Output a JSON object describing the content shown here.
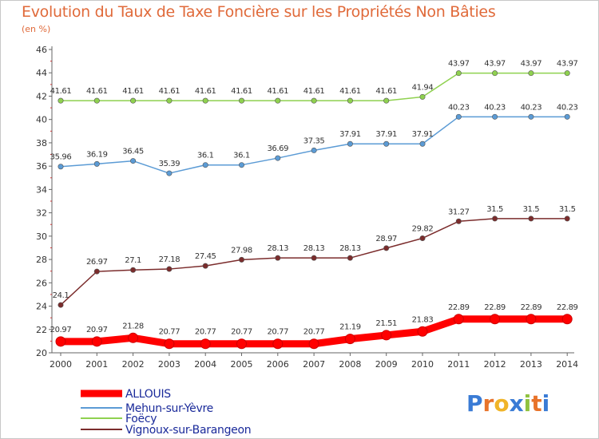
{
  "chart_data": {
    "type": "line",
    "title": "Evolution du Taux de Taxe Foncière sur les Propriétés Non Bâties",
    "subtitle": "(en %)",
    "xlabel": "",
    "ylabel": "",
    "x": [
      "2000",
      "2001",
      "2002",
      "2003",
      "2004",
      "2005",
      "2006",
      "2007",
      "2008",
      "2009",
      "2010",
      "2011",
      "2012",
      "2013",
      "2014"
    ],
    "ylim": [
      20,
      46
    ],
    "yticks": [
      20,
      22,
      24,
      26,
      28,
      30,
      32,
      34,
      36,
      38,
      40,
      42,
      44,
      46
    ],
    "grid": false,
    "legend_position": "bottom-left",
    "series": [
      {
        "name": "ALLOUIS",
        "color": "#ff0000",
        "values": [
          20.97,
          20.97,
          21.28,
          20.77,
          20.77,
          20.77,
          20.77,
          20.77,
          21.19,
          21.51,
          21.83,
          22.89,
          22.89,
          22.89,
          22.89
        ],
        "labels": [
          "20.97",
          "20.97",
          "21.28",
          "20.77",
          "20.77",
          "20.77",
          "20.77",
          "20.77",
          "21.19",
          "21.51",
          "21.83",
          "22.89",
          "22.89",
          "22.89",
          "22.89"
        ]
      },
      {
        "name": "Mehun-sur-Yèvre",
        "color": "#5b9bd5",
        "values": [
          35.96,
          36.19,
          36.45,
          35.39,
          36.1,
          36.1,
          36.69,
          37.35,
          37.91,
          37.91,
          37.91,
          40.23,
          40.23,
          40.23,
          40.23
        ],
        "labels": [
          "35.96",
          "36.19",
          "36.45",
          "35.39",
          "36.1",
          "36.1",
          "36.69",
          "37.35",
          "37.91",
          "37.91",
          "37.91",
          "40.23",
          "40.23",
          "40.23",
          "40.23"
        ]
      },
      {
        "name": "Foëcy",
        "color": "#8fd14f",
        "values": [
          41.61,
          41.61,
          41.61,
          41.61,
          41.61,
          41.61,
          41.61,
          41.61,
          41.61,
          41.61,
          41.94,
          43.97,
          43.97,
          43.97,
          43.97
        ],
        "labels": [
          "41.61",
          "41.61",
          "41.61",
          "41.61",
          "41.61",
          "41.61",
          "41.61",
          "41.61",
          "41.61",
          "41.61",
          "41.94",
          "43.97",
          "43.97",
          "43.97",
          "43.97"
        ]
      },
      {
        "name": "Vignoux-sur-Barangeon",
        "color": "#7b2c2c",
        "values": [
          24.1,
          26.97,
          27.1,
          27.18,
          27.45,
          27.98,
          28.13,
          28.13,
          28.13,
          28.97,
          29.82,
          31.27,
          31.5,
          31.5,
          31.5
        ],
        "labels": [
          "24.1",
          "26.97",
          "27.1",
          "27.18",
          "27.45",
          "27.98",
          "28.13",
          "28.13",
          "28.13",
          "28.97",
          "29.82",
          "31.27",
          "31.5",
          "31.5",
          "31.5"
        ]
      }
    ]
  },
  "brand": {
    "logo_parts": [
      "P",
      "r",
      "o",
      "x",
      "i",
      "t",
      "i"
    ],
    "logo_colors": [
      "#3a7bd5",
      "#e8732a",
      "#f0b428",
      "#3a7bd5",
      "#8fc23f",
      "#e8732a",
      "#3a7bd5"
    ]
  }
}
